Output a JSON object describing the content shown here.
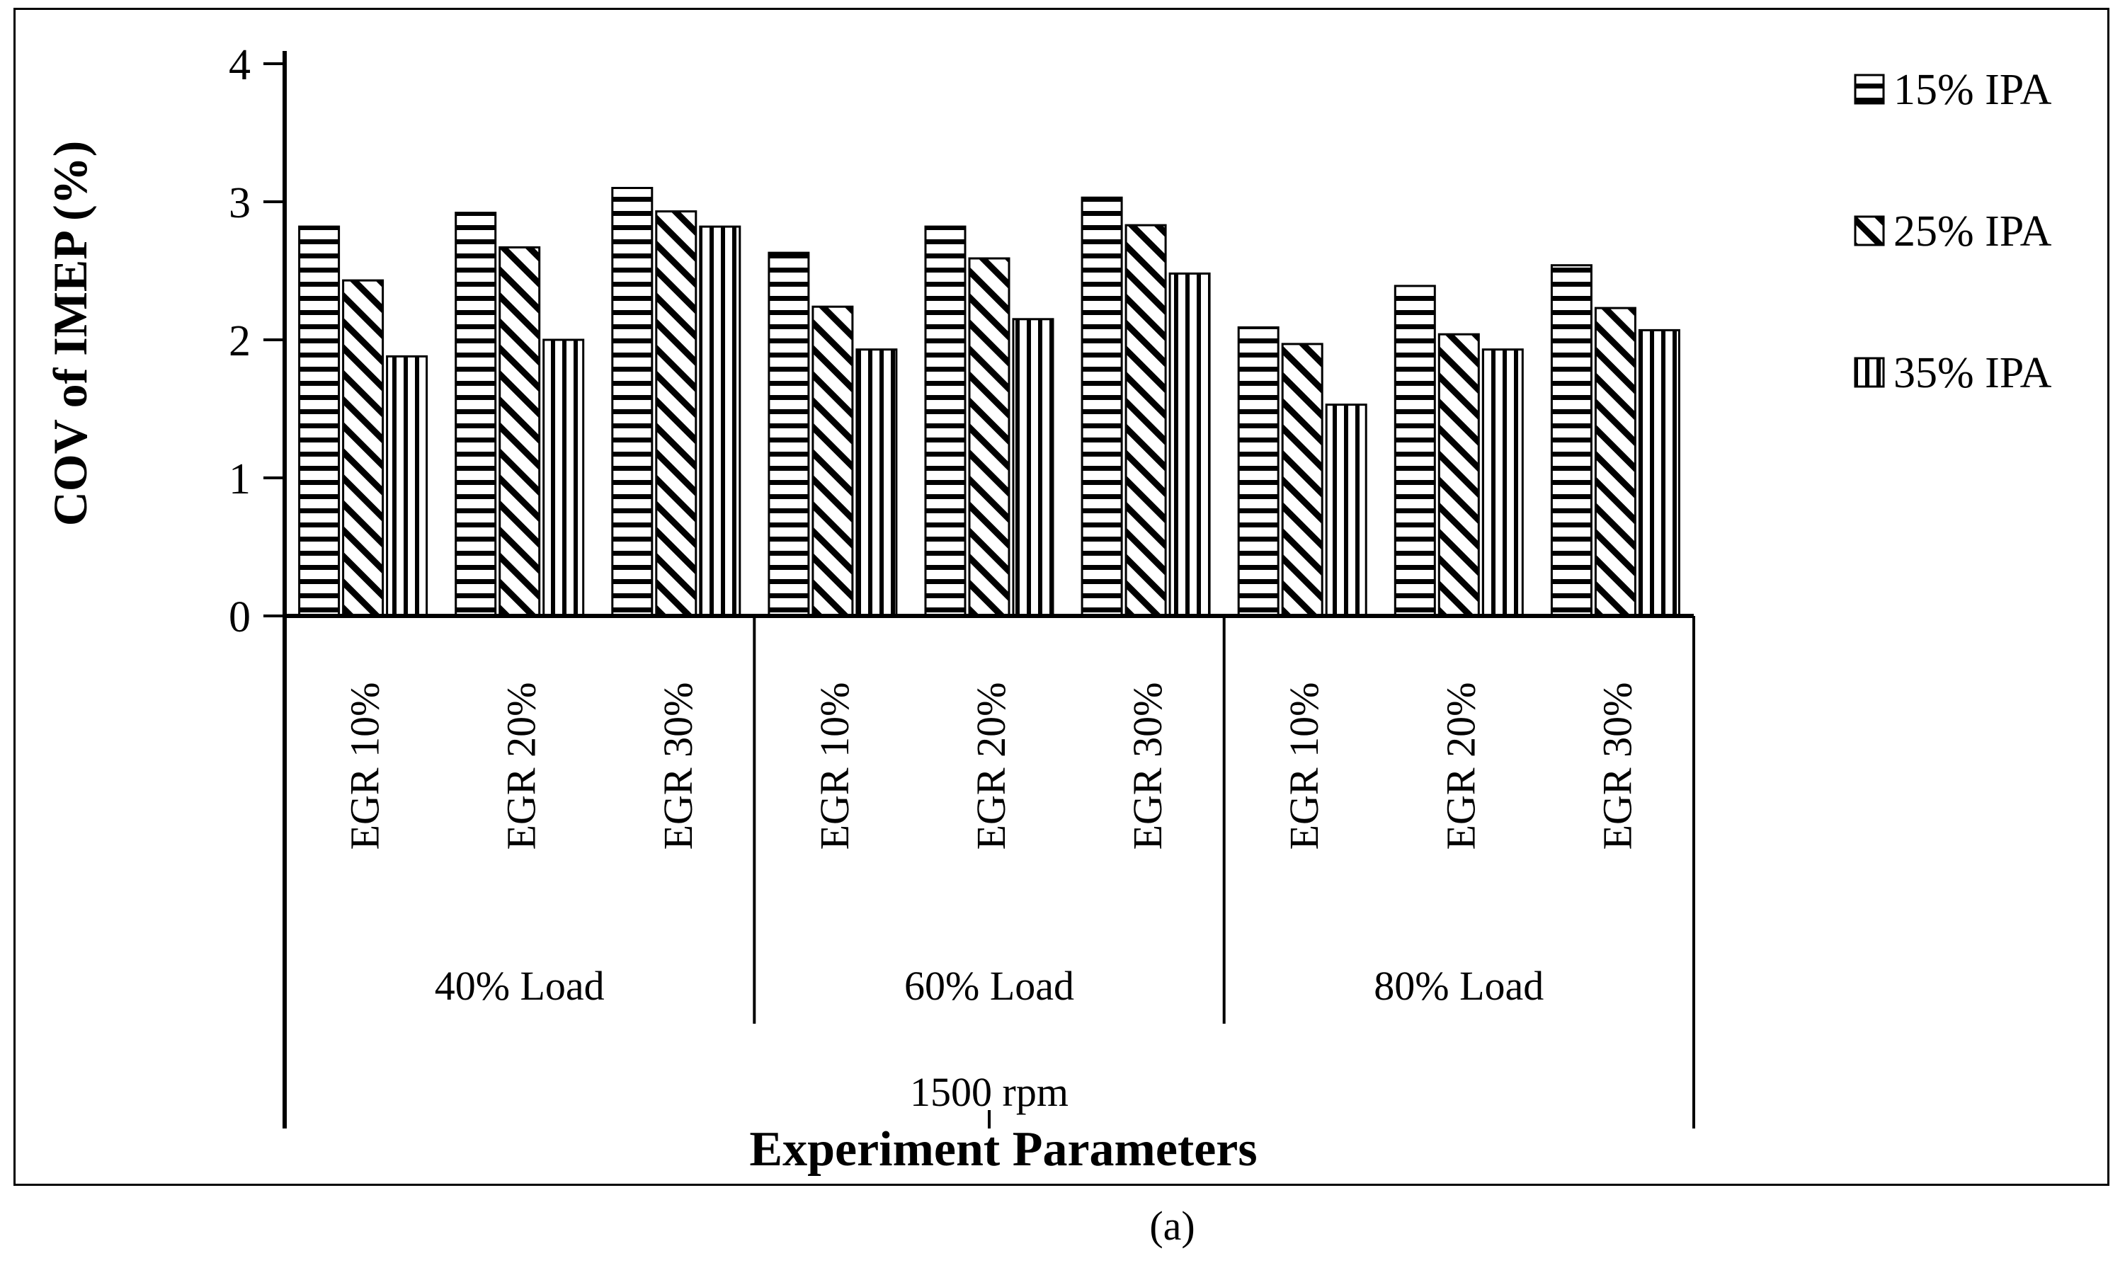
{
  "figure": {
    "caption": "(a)"
  },
  "chart_data": {
    "type": "bar",
    "title": "",
    "ylabel": "COV of IMEP (%)",
    "xlabel": "Experiment Parameters",
    "ylim": [
      0,
      4
    ],
    "yticks": [
      0,
      1,
      2,
      3,
      4
    ],
    "grid": false,
    "legend_position": "top-right",
    "categories": [
      "EGR 10%",
      "EGR 20%",
      "EGR 30%",
      "EGR 10%",
      "EGR 20%",
      "EGR 30%",
      "EGR 10%",
      "EGR 20%",
      "EGR 30%"
    ],
    "category_groups": [
      {
        "label": "40% Load",
        "span": 3
      },
      {
        "label": "60% Load",
        "span": 3
      },
      {
        "label": "80% Load",
        "span": 3
      }
    ],
    "axis_group_label": "1500 rpm",
    "series": [
      {
        "name": "15% IPA",
        "pattern": "horizontal-stripes",
        "values": [
          2.82,
          2.92,
          3.1,
          2.63,
          2.82,
          3.03,
          2.09,
          2.39,
          2.54
        ]
      },
      {
        "name": "25% IPA",
        "pattern": "diagonal-stripes",
        "values": [
          2.43,
          2.67,
          2.93,
          2.24,
          2.59,
          2.83,
          1.97,
          2.04,
          2.23
        ]
      },
      {
        "name": "35% IPA",
        "pattern": "vertical-stripes",
        "values": [
          1.88,
          2.0,
          2.82,
          1.93,
          2.15,
          2.48,
          1.53,
          1.93,
          2.07
        ]
      }
    ],
    "colors": {
      "foreground": "#000000",
      "background": "#ffffff"
    }
  }
}
